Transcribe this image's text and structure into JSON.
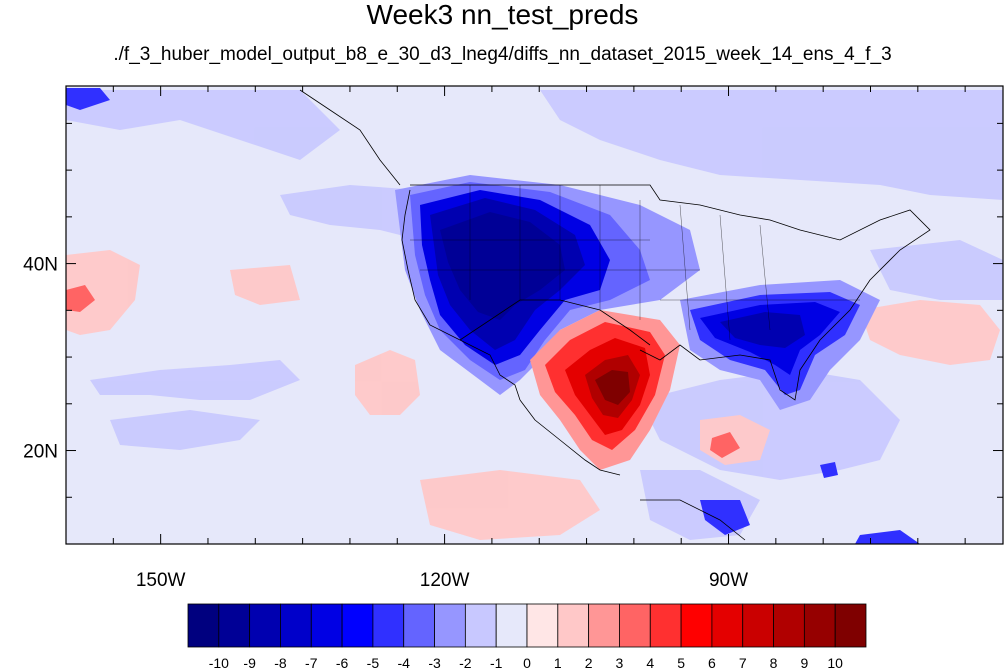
{
  "title": "Week3 nn_test_preds",
  "subtitle": "./f_3_huber_model_output_b8_e_30_d3_lneg4/diffs_nn_dataset_2015_week_14_ens_4_f_3",
  "map": {
    "lon_range": [
      -160,
      -61
    ],
    "lat_range": [
      10,
      59
    ],
    "lon_ticks": [
      {
        "value": -150,
        "label": "150W"
      },
      {
        "value": -120,
        "label": "120W"
      },
      {
        "value": -90,
        "label": "90W"
      }
    ],
    "lat_ticks": [
      {
        "value": 40,
        "label": "40N"
      },
      {
        "value": 20,
        "label": "20N"
      }
    ],
    "background_color": "#e6e8fa"
  },
  "colorbar": {
    "labels": [
      "-10",
      "-9",
      "-8",
      "-7",
      "-6",
      "-5",
      "-4",
      "-3",
      "-2",
      "-1",
      "0",
      "1",
      "2",
      "3",
      "4",
      "5",
      "6",
      "7",
      "8",
      "9",
      "10"
    ],
    "colors": [
      "#00007f",
      "#000096",
      "#0000b0",
      "#0000ca",
      "#0000e4",
      "#0000ff",
      "#3030ff",
      "#6464ff",
      "#9696ff",
      "#c8c8ff",
      "#e6e8fa",
      "#ffe6e6",
      "#ffc8c8",
      "#ff9696",
      "#ff6464",
      "#ff3030",
      "#ff0000",
      "#e40000",
      "#ca0000",
      "#b00000",
      "#960000",
      "#7f0000"
    ]
  }
}
